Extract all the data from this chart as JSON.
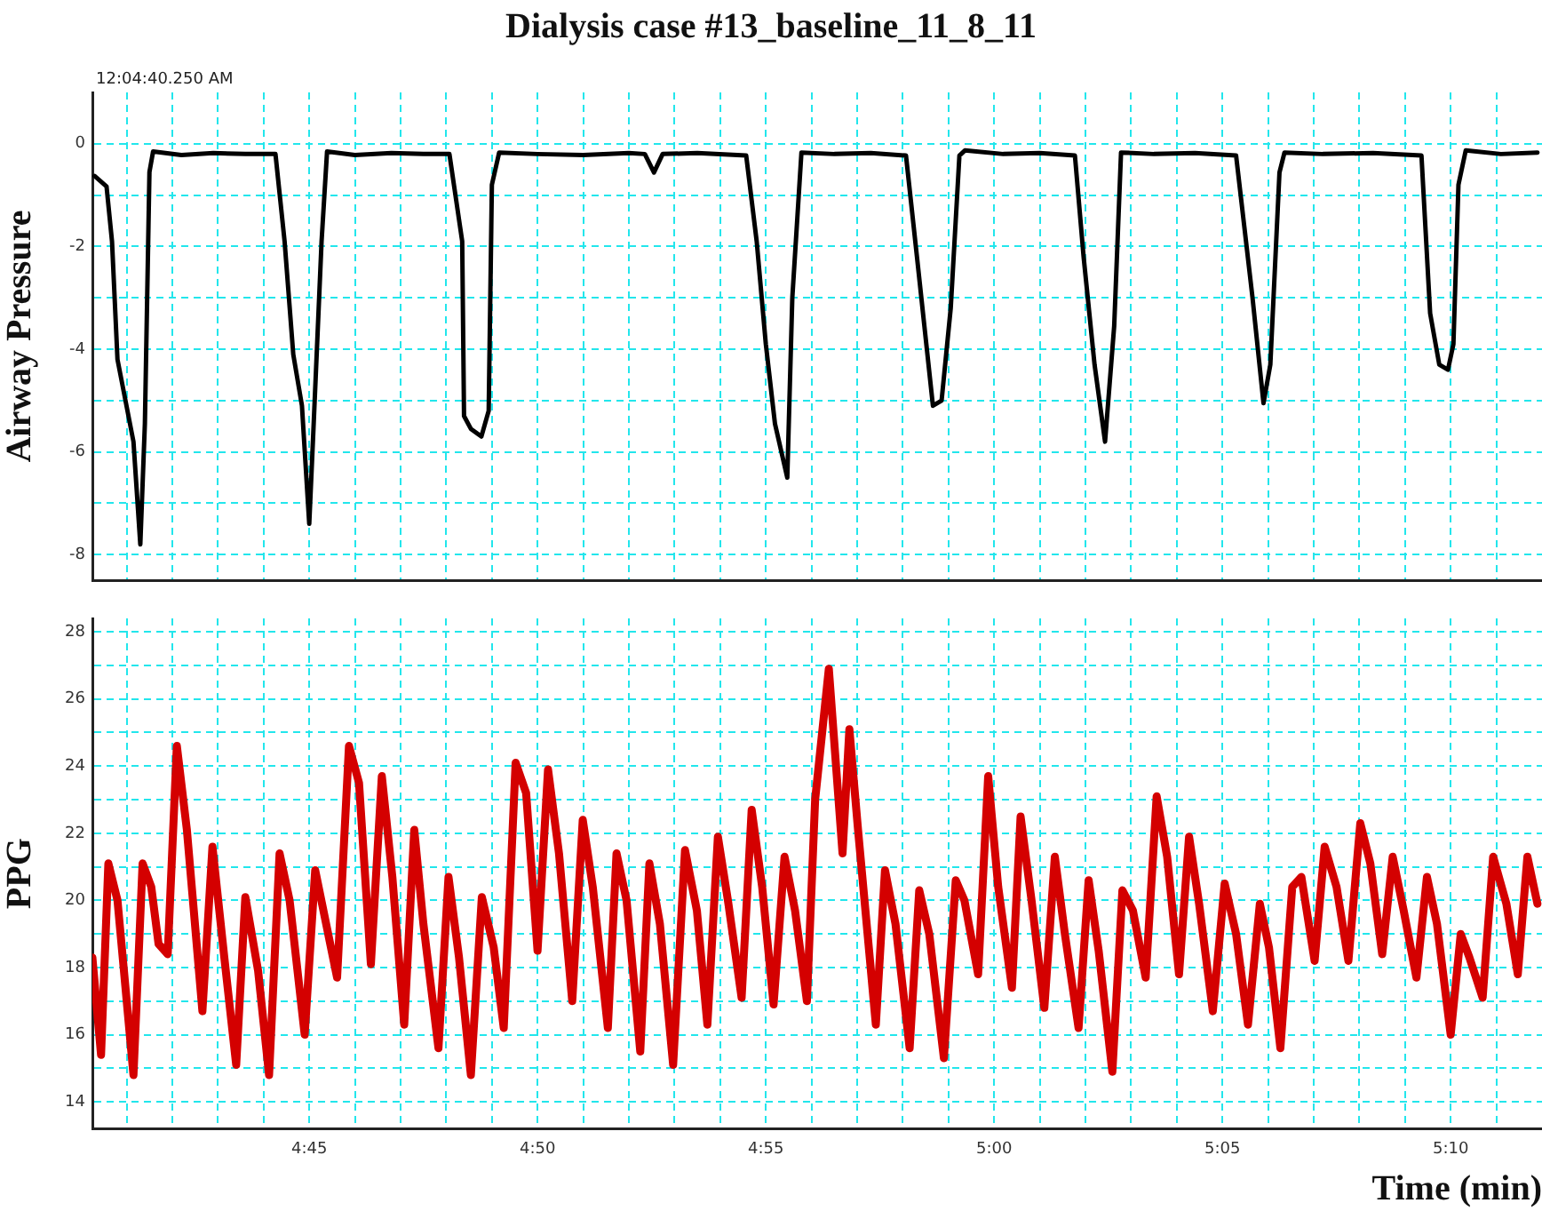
{
  "chart_data": [
    {
      "type": "line",
      "title": "Dialysis case #13_baseline_11_8_11",
      "ylabel": "Airway Pressure",
      "annotations": [
        "12:04:40.250 AM"
      ],
      "tick_labels": "y",
      "grid": true,
      "legend": false,
      "marker": "none",
      "line_style": "solid",
      "xlim": [
        280.25,
        312
      ],
      "xticks": [
        {
          "value": 281,
          "label": null
        },
        {
          "value": 282,
          "label": null
        },
        {
          "value": 283,
          "label": null
        },
        {
          "value": 284,
          "label": null
        },
        {
          "value": 285,
          "label": null
        },
        {
          "value": 286,
          "label": null
        },
        {
          "value": 287,
          "label": null
        },
        {
          "value": 288,
          "label": null
        },
        {
          "value": 289,
          "label": null
        },
        {
          "value": 290,
          "label": null
        },
        {
          "value": 291,
          "label": null
        },
        {
          "value": 292,
          "label": null
        },
        {
          "value": 293,
          "label": null
        },
        {
          "value": 294,
          "label": null
        },
        {
          "value": 295,
          "label": null
        },
        {
          "value": 296,
          "label": null
        },
        {
          "value": 297,
          "label": null
        },
        {
          "value": 298,
          "label": null
        },
        {
          "value": 299,
          "label": null
        },
        {
          "value": 300,
          "label": null
        },
        {
          "value": 301,
          "label": null
        },
        {
          "value": 302,
          "label": null
        },
        {
          "value": 303,
          "label": null
        },
        {
          "value": 304,
          "label": null
        },
        {
          "value": 305,
          "label": null
        },
        {
          "value": 306,
          "label": null
        },
        {
          "value": 307,
          "label": null
        },
        {
          "value": 308,
          "label": null
        },
        {
          "value": 309,
          "label": null
        },
        {
          "value": 310,
          "label": null
        },
        {
          "value": 311,
          "label": null
        }
      ],
      "ylim": [
        -8.5,
        1
      ],
      "yticks": [
        {
          "value": -8,
          "label": "-8"
        },
        {
          "value": -7,
          "label": null
        },
        {
          "value": -6,
          "label": "-6"
        },
        {
          "value": -5,
          "label": null
        },
        {
          "value": -4,
          "label": "-4"
        },
        {
          "value": -3,
          "label": null
        },
        {
          "value": -2,
          "label": "-2"
        },
        {
          "value": -1,
          "label": null
        },
        {
          "value": 0,
          "label": "0"
        }
      ],
      "series": [
        {
          "color": "#000000",
          "x": [
            280.3,
            280.56,
            280.68,
            280.8,
            281.15,
            281.3,
            281.4,
            281.5,
            281.58,
            282.2,
            282.9,
            283.6,
            284.26,
            284.46,
            284.65,
            284.84,
            285.0,
            285.08,
            285.27,
            285.39,
            286.0,
            286.8,
            287.5,
            288.07,
            288.35,
            288.39,
            288.54,
            288.77,
            288.93,
            289.0,
            289.16,
            290.0,
            291.0,
            292.0,
            292.35,
            292.55,
            292.74,
            293.5,
            294.57,
            294.8,
            295.0,
            295.2,
            295.47,
            295.58,
            295.78,
            296.5,
            297.3,
            298.07,
            298.31,
            298.66,
            298.85,
            299.05,
            299.24,
            299.36,
            300.2,
            301.0,
            301.77,
            301.96,
            302.2,
            302.43,
            302.63,
            302.78,
            303.5,
            304.4,
            305.3,
            305.66,
            305.9,
            306.05,
            306.25,
            306.36,
            307.2,
            308.3,
            309.36,
            309.55,
            309.75,
            309.94,
            310.06,
            310.17,
            310.33,
            311.1,
            311.9
          ],
          "values": [
            -0.63,
            -0.83,
            -1.9,
            -4.2,
            -5.8,
            -7.8,
            -5.45,
            -0.55,
            -0.15,
            -0.22,
            -0.18,
            -0.2,
            -0.2,
            -1.9,
            -4.1,
            -5.1,
            -7.4,
            -5.8,
            -1.9,
            -0.15,
            -0.22,
            -0.18,
            -0.2,
            -0.2,
            -1.9,
            -5.3,
            -5.55,
            -5.7,
            -5.2,
            -0.8,
            -0.17,
            -0.2,
            -0.22,
            -0.18,
            -0.2,
            -0.56,
            -0.2,
            -0.18,
            -0.23,
            -1.9,
            -3.9,
            -5.45,
            -6.5,
            -3.0,
            -0.17,
            -0.2,
            -0.18,
            -0.23,
            -2.2,
            -5.1,
            -5.0,
            -3.2,
            -0.23,
            -0.13,
            -0.2,
            -0.18,
            -0.23,
            -2.2,
            -4.3,
            -5.8,
            -3.55,
            -0.17,
            -0.2,
            -0.18,
            -0.23,
            -3.0,
            -5.05,
            -4.3,
            -0.56,
            -0.17,
            -0.2,
            -0.18,
            -0.23,
            -3.3,
            -4.3,
            -4.4,
            -3.9,
            -0.8,
            -0.13,
            -0.2,
            -0.17
          ]
        }
      ]
    },
    {
      "type": "line",
      "xlabel": "Time (min)",
      "ylabel": "PPG",
      "grid": true,
      "legend": false,
      "marker": "none",
      "line_style": "solid",
      "xlim": [
        280.25,
        312
      ],
      "xticks": [
        {
          "value": 281,
          "label": null
        },
        {
          "value": 282,
          "label": null
        },
        {
          "value": 283,
          "label": null
        },
        {
          "value": 284,
          "label": null
        },
        {
          "value": 285,
          "label": "4:45"
        },
        {
          "value": 286,
          "label": null
        },
        {
          "value": 287,
          "label": null
        },
        {
          "value": 288,
          "label": null
        },
        {
          "value": 289,
          "label": null
        },
        {
          "value": 290,
          "label": "4:50"
        },
        {
          "value": 291,
          "label": null
        },
        {
          "value": 292,
          "label": null
        },
        {
          "value": 293,
          "label": null
        },
        {
          "value": 294,
          "label": null
        },
        {
          "value": 295,
          "label": "4:55"
        },
        {
          "value": 296,
          "label": null
        },
        {
          "value": 297,
          "label": null
        },
        {
          "value": 298,
          "label": null
        },
        {
          "value": 299,
          "label": null
        },
        {
          "value": 300,
          "label": "5:00"
        },
        {
          "value": 301,
          "label": null
        },
        {
          "value": 302,
          "label": null
        },
        {
          "value": 303,
          "label": null
        },
        {
          "value": 304,
          "label": null
        },
        {
          "value": 305,
          "label": "5:05"
        },
        {
          "value": 306,
          "label": null
        },
        {
          "value": 307,
          "label": null
        },
        {
          "value": 308,
          "label": null
        },
        {
          "value": 309,
          "label": null
        },
        {
          "value": 310,
          "label": "5:10"
        },
        {
          "value": 311,
          "label": null
        }
      ],
      "ylim": [
        13.2,
        28.4
      ],
      "yticks": [
        {
          "value": 14,
          "label": "14"
        },
        {
          "value": 15,
          "label": null
        },
        {
          "value": 16,
          "label": "16"
        },
        {
          "value": 17,
          "label": null
        },
        {
          "value": 18,
          "label": "18"
        },
        {
          "value": 19,
          "label": null
        },
        {
          "value": 20,
          "label": "20"
        },
        {
          "value": 21,
          "label": null
        },
        {
          "value": 22,
          "label": "22"
        },
        {
          "value": 23,
          "label": null
        },
        {
          "value": 24,
          "label": "24"
        },
        {
          "value": 25,
          "label": null
        },
        {
          "value": 26,
          "label": "26"
        },
        {
          "value": 27,
          "label": null
        },
        {
          "value": 28,
          "label": "28"
        }
      ],
      "series": [
        {
          "color": "#d40000",
          "x": [
            280.25,
            280.44,
            280.6,
            280.8,
            281.15,
            281.35,
            281.54,
            281.7,
            281.9,
            282.1,
            282.32,
            282.66,
            282.88,
            283.14,
            283.4,
            283.6,
            283.88,
            284.12,
            284.35,
            284.57,
            284.9,
            285.13,
            285.61,
            285.87,
            286.09,
            286.35,
            286.59,
            286.82,
            287.08,
            287.3,
            287.5,
            287.83,
            288.05,
            288.28,
            288.54,
            288.78,
            289.04,
            289.26,
            289.52,
            289.75,
            290.0,
            290.23,
            290.47,
            290.76,
            290.99,
            291.21,
            291.54,
            291.73,
            291.95,
            292.25,
            292.45,
            292.68,
            292.97,
            293.23,
            293.49,
            293.72,
            293.95,
            294.17,
            294.47,
            294.69,
            294.92,
            295.17,
            295.41,
            295.64,
            295.9,
            296.08,
            296.38,
            296.68,
            296.83,
            297.02,
            297.41,
            297.61,
            297.84,
            298.15,
            298.36,
            298.58,
            298.9,
            299.16,
            299.35,
            299.65,
            299.87,
            300.09,
            300.39,
            300.58,
            300.82,
            301.1,
            301.33,
            301.55,
            301.85,
            302.07,
            302.29,
            302.59,
            302.81,
            303.04,
            303.32,
            303.56,
            303.79,
            304.05,
            304.27,
            304.49,
            304.79,
            305.05,
            305.3,
            305.56,
            305.82,
            306.02,
            306.27,
            306.53,
            306.73,
            307.02,
            307.24,
            307.5,
            307.76,
            308.02,
            308.24,
            308.5,
            308.73,
            308.97,
            309.25,
            309.48,
            309.7,
            310.0,
            310.22,
            310.41,
            310.7,
            310.93,
            311.22,
            311.47,
            311.68,
            311.9
          ],
          "values": [
            18.3,
            15.4,
            21.1,
            20.0,
            14.8,
            21.1,
            20.4,
            18.7,
            18.4,
            24.6,
            22.1,
            16.7,
            21.6,
            18.3,
            15.1,
            20.1,
            17.9,
            14.8,
            21.4,
            20.0,
            16.0,
            20.9,
            17.7,
            24.6,
            23.5,
            18.1,
            23.7,
            20.7,
            16.3,
            22.1,
            19.3,
            15.6,
            20.7,
            18.3,
            14.8,
            20.1,
            18.6,
            16.2,
            24.1,
            23.2,
            18.5,
            23.9,
            21.4,
            17.0,
            22.4,
            20.4,
            16.2,
            21.4,
            20.0,
            15.5,
            21.1,
            19.3,
            15.1,
            21.5,
            19.7,
            16.3,
            21.9,
            20.0,
            17.1,
            22.7,
            20.4,
            16.9,
            21.3,
            19.7,
            17.0,
            23.0,
            26.9,
            21.4,
            25.1,
            22.1,
            16.3,
            20.9,
            19.3,
            15.6,
            20.3,
            19.0,
            15.3,
            20.6,
            20.0,
            17.8,
            23.7,
            20.4,
            17.4,
            22.5,
            20.0,
            16.8,
            21.3,
            19.0,
            16.2,
            20.6,
            18.5,
            14.9,
            20.3,
            19.7,
            17.7,
            23.1,
            21.3,
            17.8,
            21.9,
            19.9,
            16.7,
            20.5,
            19.0,
            16.3,
            19.9,
            18.6,
            15.6,
            20.4,
            20.7,
            18.2,
            21.6,
            20.4,
            18.2,
            22.3,
            21.1,
            18.4,
            21.3,
            19.7,
            17.7,
            20.7,
            19.3,
            16.0,
            19.0,
            18.3,
            17.1,
            21.3,
            19.9,
            17.8,
            21.3,
            19.9
          ]
        }
      ]
    }
  ]
}
